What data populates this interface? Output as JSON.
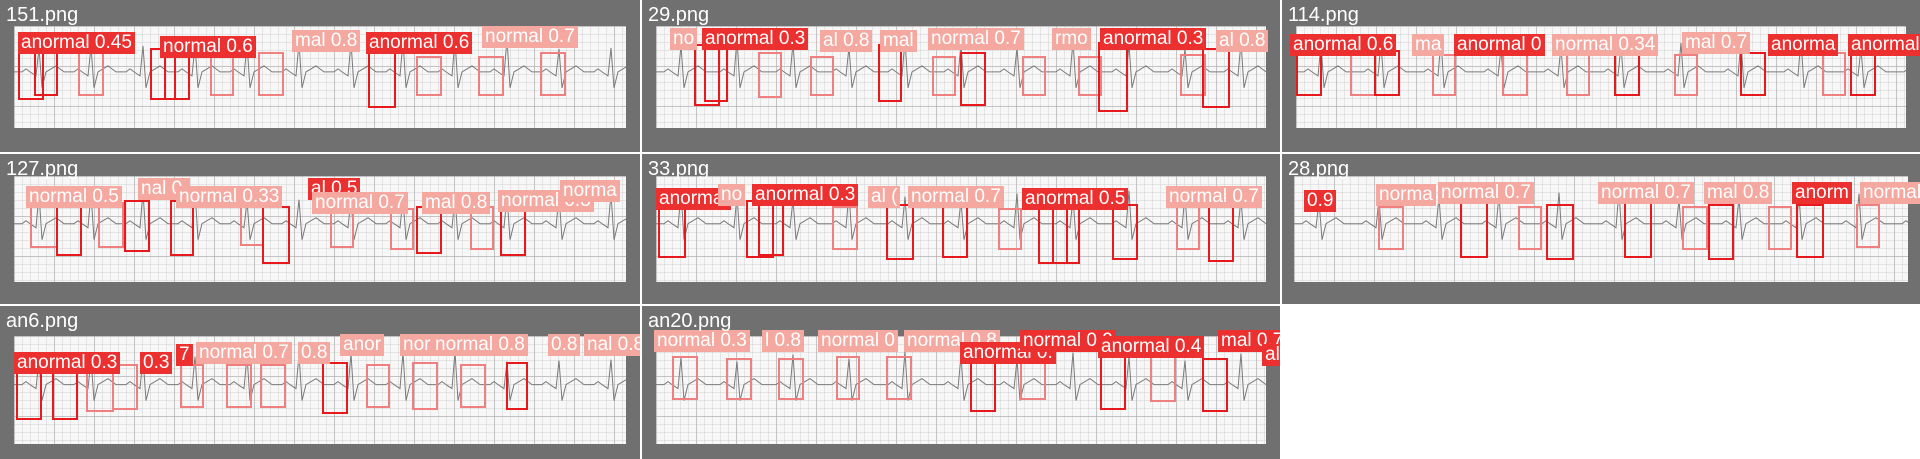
{
  "colors": {
    "tile_background": "#707070",
    "anormal_box": "#e8191c",
    "anormal_label": "#ec2f2f",
    "normal_box": "#f07f7f",
    "normal_label": "#f5a8a0"
  },
  "tiles": [
    {
      "name": "151.png",
      "tags": [
        {
          "text": "anormal 0.45",
          "cls": "a"
        },
        {
          "text": "normal 0.6",
          "cls": "a"
        },
        {
          "text": "mal 0.8",
          "cls": "n"
        },
        {
          "text": "anormal 0.6",
          "cls": "a"
        },
        {
          "text": "normal 0.7",
          "cls": "n"
        }
      ]
    },
    {
      "name": "29.png",
      "tags": [
        {
          "text": "no",
          "cls": "n"
        },
        {
          "text": "anormal 0.3",
          "cls": "a"
        },
        {
          "text": "al 0.8",
          "cls": "n"
        },
        {
          "text": "mal",
          "cls": "n"
        },
        {
          "text": "normal 0.7",
          "cls": "n"
        },
        {
          "text": "rmo",
          "cls": "n"
        },
        {
          "text": "anormal 0.3",
          "cls": "a"
        },
        {
          "text": "al 0.8",
          "cls": "n"
        }
      ]
    },
    {
      "name": "114.png",
      "tags": [
        {
          "text": "anormal 0.6",
          "cls": "a"
        },
        {
          "text": "ma",
          "cls": "n"
        },
        {
          "text": "anormal 0",
          "cls": "a"
        },
        {
          "text": "normal 0.34",
          "cls": "n"
        },
        {
          "text": "mal 0.7",
          "cls": "n"
        },
        {
          "text": "anorma",
          "cls": "a"
        },
        {
          "text": "anormal",
          "cls": "a"
        }
      ]
    },
    {
      "name": "127.png",
      "tags": [
        {
          "text": "normal 0.5",
          "cls": "n"
        },
        {
          "text": "nal 0.",
          "cls": "n"
        },
        {
          "text": "normal 0.33",
          "cls": "n"
        },
        {
          "text": "al 0.5",
          "cls": "a"
        },
        {
          "text": "normal 0.7",
          "cls": "n"
        },
        {
          "text": "mal 0.8",
          "cls": "n"
        },
        {
          "text": "normal 0.3",
          "cls": "n"
        },
        {
          "text": "norma",
          "cls": "n"
        }
      ]
    },
    {
      "name": "33.png",
      "tags": [
        {
          "text": "anormal",
          "cls": "a"
        },
        {
          "text": "no",
          "cls": "n"
        },
        {
          "text": "anormal 0.3",
          "cls": "a"
        },
        {
          "text": "al (",
          "cls": "n"
        },
        {
          "text": "normal 0.7",
          "cls": "n"
        },
        {
          "text": "anormal 0.5",
          "cls": "a"
        },
        {
          "text": "normal 0.7",
          "cls": "n"
        }
      ]
    },
    {
      "name": "28.png",
      "tags": [
        {
          "text": "0.9",
          "cls": "a"
        },
        {
          "text": "norma",
          "cls": "n"
        },
        {
          "text": "normal 0.7",
          "cls": "n"
        },
        {
          "text": "normal 0.7",
          "cls": "n"
        },
        {
          "text": "mal 0.8",
          "cls": "n"
        },
        {
          "text": "anorm",
          "cls": "a"
        },
        {
          "text": "normal",
          "cls": "n"
        }
      ]
    },
    {
      "name": "an6.png",
      "tags": [
        {
          "text": "anormal 0.3",
          "cls": "a"
        },
        {
          "text": "0.3",
          "cls": "a"
        },
        {
          "text": "7",
          "cls": "a"
        },
        {
          "text": "normal 0.7",
          "cls": "n"
        },
        {
          "text": "0.8",
          "cls": "n"
        },
        {
          "text": "anor",
          "cls": "n"
        },
        {
          "text": "nor",
          "cls": "n"
        },
        {
          "text": "normal 0.8",
          "cls": "n"
        },
        {
          "text": "0.8",
          "cls": "n"
        },
        {
          "text": "nal 0.8",
          "cls": "n"
        }
      ]
    },
    {
      "name": "an20.png",
      "tags": [
        {
          "text": "normal 0.3",
          "cls": "n"
        },
        {
          "text": "l 0.8",
          "cls": "n"
        },
        {
          "text": "normal 0",
          "cls": "n"
        },
        {
          "text": "normal 0.8",
          "cls": "n"
        },
        {
          "text": "anormal 0.",
          "cls": "a"
        },
        {
          "text": "normal 0.9",
          "cls": "a"
        },
        {
          "text": "anormal 0.4",
          "cls": "a"
        },
        {
          "text": "mal 0.7",
          "cls": "a"
        },
        {
          "text": "al 0.8",
          "cls": "a"
        }
      ]
    }
  ]
}
